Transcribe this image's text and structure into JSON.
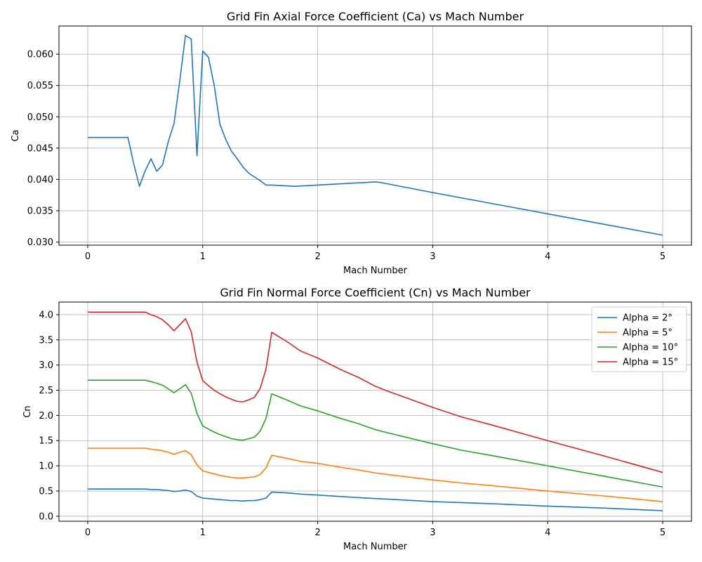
{
  "chart_data": [
    {
      "type": "line",
      "title": "Grid Fin Axial Force Coefficient (Ca) vs Mach Number",
      "xlabel": "Mach Number",
      "ylabel": "Ca",
      "xlim": [
        -0.25,
        5.25
      ],
      "ylim": [
        0.0295,
        0.0645
      ],
      "xticks": [
        "0",
        "1",
        "2",
        "3",
        "4",
        "5"
      ],
      "yticks": [
        "0.030",
        "0.035",
        "0.040",
        "0.045",
        "0.050",
        "0.055",
        "0.060"
      ],
      "grid": true,
      "series": [
        {
          "color": "#1f77b4",
          "x": [
            0,
            0.35,
            0.4,
            0.45,
            0.5,
            0.55,
            0.6,
            0.65,
            0.7,
            0.75,
            0.8,
            0.85,
            0.9,
            0.95,
            1.0,
            1.05,
            1.1,
            1.15,
            1.2,
            1.25,
            1.3,
            1.35,
            1.4,
            1.5,
            1.55,
            1.6,
            1.8,
            2.0,
            2.5,
            2.55,
            3.0,
            3.5,
            4.0,
            4.5,
            5.0
          ],
          "y": [
            0.0467,
            0.0467,
            0.0425,
            0.0389,
            0.0414,
            0.0433,
            0.0413,
            0.0423,
            0.046,
            0.0489,
            0.0557,
            0.063,
            0.0624,
            0.0438,
            0.0605,
            0.0595,
            0.055,
            0.0488,
            0.0464,
            0.0445,
            0.0433,
            0.042,
            0.041,
            0.0398,
            0.0391,
            0.0391,
            0.0389,
            0.0391,
            0.0396,
            0.0395,
            0.0379,
            0.0362,
            0.0345,
            0.0328,
            0.0311
          ]
        }
      ]
    },
    {
      "type": "line",
      "title": "Grid Fin Normal Force Coefficient (Cn) vs Mach Number",
      "xlabel": "Mach Number",
      "ylabel": "Cn",
      "xlim": [
        -0.25,
        5.25
      ],
      "ylim": [
        -0.1,
        4.25
      ],
      "xticks": [
        "0",
        "1",
        "2",
        "3",
        "4",
        "5"
      ],
      "yticks": [
        "0.0",
        "0.5",
        "1.0",
        "1.5",
        "2.0",
        "2.5",
        "3.0",
        "3.5",
        "4.0"
      ],
      "grid": true,
      "legend": "top-right",
      "x": [
        0,
        0.5,
        0.55,
        0.6,
        0.65,
        0.7,
        0.75,
        0.8,
        0.85,
        0.9,
        0.95,
        1.0,
        1.05,
        1.1,
        1.15,
        1.2,
        1.25,
        1.3,
        1.35,
        1.4,
        1.45,
        1.5,
        1.55,
        1.6,
        1.75,
        1.85,
        2.0,
        2.2,
        2.35,
        2.5,
        2.6,
        3.0,
        3.25,
        3.5,
        4.0,
        4.5,
        5.0
      ],
      "series": [
        {
          "name": "Alpha = 2°",
          "color": "#1f77b4",
          "y": [
            0.54,
            0.54,
            0.53,
            0.53,
            0.52,
            0.51,
            0.49,
            0.5,
            0.52,
            0.49,
            0.4,
            0.36,
            0.35,
            0.34,
            0.33,
            0.32,
            0.31,
            0.31,
            0.3,
            0.31,
            0.31,
            0.33,
            0.36,
            0.48,
            0.46,
            0.44,
            0.42,
            0.39,
            0.37,
            0.35,
            0.34,
            0.29,
            0.27,
            0.25,
            0.2,
            0.16,
            0.11
          ]
        },
        {
          "name": "Alpha = 5°",
          "color": "#ff7f0e",
          "y": [
            1.35,
            1.35,
            1.33,
            1.32,
            1.3,
            1.27,
            1.23,
            1.27,
            1.3,
            1.22,
            1.02,
            0.9,
            0.87,
            0.84,
            0.81,
            0.79,
            0.77,
            0.76,
            0.76,
            0.77,
            0.78,
            0.83,
            0.96,
            1.21,
            1.14,
            1.09,
            1.05,
            0.97,
            0.92,
            0.86,
            0.83,
            0.72,
            0.66,
            0.61,
            0.5,
            0.4,
            0.29
          ]
        },
        {
          "name": "Alpha = 10°",
          "color": "#2ca02c",
          "y": [
            2.7,
            2.7,
            2.67,
            2.64,
            2.6,
            2.53,
            2.45,
            2.53,
            2.61,
            2.44,
            2.04,
            1.79,
            1.73,
            1.67,
            1.62,
            1.58,
            1.54,
            1.52,
            1.51,
            1.54,
            1.57,
            1.69,
            1.94,
            2.43,
            2.29,
            2.19,
            2.09,
            1.94,
            1.84,
            1.72,
            1.66,
            1.44,
            1.31,
            1.21,
            1.0,
            0.79,
            0.58
          ]
        },
        {
          "name": "Alpha = 15°",
          "color": "#d62728",
          "y": [
            4.05,
            4.05,
            4.0,
            3.96,
            3.9,
            3.8,
            3.68,
            3.8,
            3.92,
            3.66,
            3.06,
            2.69,
            2.59,
            2.5,
            2.43,
            2.37,
            2.32,
            2.28,
            2.27,
            2.31,
            2.36,
            2.54,
            2.92,
            3.65,
            3.44,
            3.28,
            3.14,
            2.91,
            2.76,
            2.58,
            2.49,
            2.16,
            1.97,
            1.82,
            1.5,
            1.19,
            0.87
          ]
        }
      ]
    }
  ]
}
